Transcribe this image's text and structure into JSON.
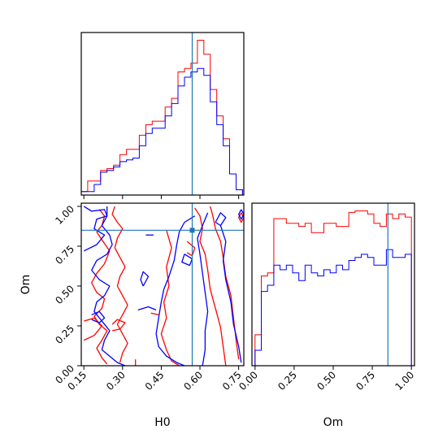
{
  "chart_data": {
    "type": "corner",
    "parameters": [
      "H0",
      "Om"
    ],
    "truths": {
      "H0": 0.57,
      "Om": 0.85
    },
    "colors": {
      "series_a": "#ff0000",
      "series_b": "#0000ff",
      "truth": "#1f77b4"
    },
    "series": [
      {
        "color": "#ff0000"
      },
      {
        "color": "#0000ff"
      }
    ],
    "h0_hist": {
      "range": [
        0.14,
        0.77
      ],
      "bin_edges": [
        0.14,
        0.165,
        0.19,
        0.215,
        0.24,
        0.265,
        0.29,
        0.315,
        0.34,
        0.365,
        0.39,
        0.415,
        0.44,
        0.465,
        0.49,
        0.515,
        0.54,
        0.565,
        0.59,
        0.615,
        0.64,
        0.665,
        0.69,
        0.715,
        0.74,
        0.765
      ],
      "series_a": [
        2,
        8,
        8,
        14,
        15,
        17,
        23,
        26,
        26,
        34,
        40,
        42,
        42,
        50,
        55,
        70,
        72,
        75,
        88,
        80,
        60,
        45,
        32,
        12,
        3
      ],
      "series_b": [
        2,
        2,
        6,
        13,
        14,
        16,
        19,
        20,
        21,
        28,
        35,
        38,
        38,
        45,
        52,
        62,
        67,
        70,
        72,
        68,
        53,
        40,
        28,
        12,
        3
      ]
    },
    "om_hist": {
      "range": [
        0.0,
        1.0
      ],
      "bin_edges": [
        0.0,
        0.04,
        0.08,
        0.12,
        0.16,
        0.2,
        0.24,
        0.28,
        0.32,
        0.36,
        0.4,
        0.44,
        0.48,
        0.52,
        0.56,
        0.6,
        0.64,
        0.68,
        0.72,
        0.76,
        0.8,
        0.84,
        0.88,
        0.92,
        0.96,
        1.0
      ],
      "series_a": [
        20,
        58,
        60,
        95,
        95,
        92,
        92,
        90,
        92,
        86,
        86,
        92,
        92,
        90,
        90,
        99,
        100,
        100,
        98,
        92,
        90,
        98,
        95,
        98,
        96
      ],
      "series_b": [
        10,
        48,
        52,
        65,
        62,
        65,
        60,
        55,
        65,
        60,
        58,
        62,
        60,
        65,
        62,
        68,
        70,
        72,
        70,
        65,
        65,
        75,
        70,
        70,
        72
      ]
    },
    "contours": {
      "x_param": "H0",
      "y_param": "Om",
      "series_a": [
        [
          [
            0.21,
            0.98
          ],
          [
            0.23,
            0.94
          ],
          [
            0.22,
            0.88
          ],
          [
            0.2,
            0.84
          ],
          [
            0.22,
            0.79
          ],
          [
            0.25,
            0.72
          ],
          [
            0.23,
            0.64
          ],
          [
            0.2,
            0.58
          ],
          [
            0.18,
            0.52
          ],
          [
            0.2,
            0.46
          ],
          [
            0.23,
            0.42
          ],
          [
            0.22,
            0.36
          ],
          [
            0.19,
            0.31
          ],
          [
            0.21,
            0.26
          ],
          [
            0.24,
            0.22
          ],
          [
            0.22,
            0.16
          ],
          [
            0.2,
            0.11
          ],
          [
            0.22,
            0.05
          ],
          [
            0.24,
            0.01
          ]
        ],
        [
          [
            0.27,
            1.0
          ],
          [
            0.26,
            0.95
          ],
          [
            0.28,
            0.9
          ],
          [
            0.3,
            0.86
          ],
          [
            0.28,
            0.8
          ],
          [
            0.27,
            0.74
          ],
          [
            0.29,
            0.68
          ],
          [
            0.31,
            0.62
          ],
          [
            0.29,
            0.56
          ],
          [
            0.28,
            0.5
          ],
          [
            0.3,
            0.44
          ],
          [
            0.32,
            0.38
          ],
          [
            0.3,
            0.32
          ],
          [
            0.28,
            0.26
          ],
          [
            0.3,
            0.2
          ],
          [
            0.32,
            0.14
          ],
          [
            0.3,
            0.08
          ],
          [
            0.29,
            0.02
          ]
        ],
        [
          [
            0.15,
            0.28
          ],
          [
            0.19,
            0.3
          ],
          [
            0.22,
            0.25
          ],
          [
            0.19,
            0.19
          ],
          [
            0.15,
            0.16
          ]
        ],
        [
          [
            0.26,
            0.26
          ],
          [
            0.28,
            0.29
          ],
          [
            0.31,
            0.27
          ],
          [
            0.29,
            0.23
          ],
          [
            0.26,
            0.22
          ]
        ],
        [
          [
            0.35,
            0.04
          ],
          [
            0.35,
            0.0
          ]
        ],
        [
          [
            0.41,
            0.33
          ],
          [
            0.44,
            0.32
          ]
        ],
        [
          [
            0.47,
            0.85
          ],
          [
            0.49,
            0.74
          ],
          [
            0.47,
            0.62
          ],
          [
            0.48,
            0.5
          ],
          [
            0.46,
            0.4
          ],
          [
            0.47,
            0.3
          ],
          [
            0.45,
            0.2
          ],
          [
            0.47,
            0.1
          ],
          [
            0.49,
            0.03
          ],
          [
            0.52,
            0.0
          ]
        ],
        [
          [
            0.58,
            0.99
          ],
          [
            0.6,
            0.94
          ],
          [
            0.61,
            0.86
          ],
          [
            0.6,
            0.78
          ],
          [
            0.62,
            0.7
          ],
          [
            0.63,
            0.6
          ],
          [
            0.64,
            0.48
          ],
          [
            0.66,
            0.36
          ],
          [
            0.68,
            0.24
          ],
          [
            0.69,
            0.12
          ],
          [
            0.7,
            0.0
          ]
        ],
        [
          [
            0.64,
            1.0
          ],
          [
            0.65,
            0.94
          ],
          [
            0.66,
            0.86
          ],
          [
            0.68,
            0.78
          ],
          [
            0.69,
            0.68
          ],
          [
            0.7,
            0.56
          ],
          [
            0.72,
            0.44
          ],
          [
            0.73,
            0.3
          ],
          [
            0.74,
            0.16
          ],
          [
            0.75,
            0.04
          ]
        ],
        [
          [
            0.55,
            0.78
          ],
          [
            0.58,
            0.74
          ],
          [
            0.57,
            0.69
          ],
          [
            0.55,
            0.71
          ]
        ],
        [
          [
            0.76,
            0.96
          ],
          [
            0.77,
            0.93
          ],
          [
            0.76,
            0.9
          ],
          [
            0.75,
            0.93
          ],
          [
            0.76,
            0.96
          ]
        ]
      ],
      "series_b": [
        [
          [
            0.15,
            1.0
          ],
          [
            0.18,
            0.97
          ],
          [
            0.23,
            0.98
          ],
          [
            0.24,
            0.94
          ],
          [
            0.2,
            0.92
          ],
          [
            0.19,
            0.86
          ],
          [
            0.23,
            0.82
          ],
          [
            0.2,
            0.76
          ],
          [
            0.15,
            0.72
          ]
        ],
        [
          [
            0.24,
            1.0
          ],
          [
            0.24,
            0.94
          ],
          [
            0.22,
            0.88
          ],
          [
            0.25,
            0.82
          ],
          [
            0.26,
            0.76
          ],
          [
            0.24,
            0.7
          ],
          [
            0.2,
            0.66
          ],
          [
            0.18,
            0.6
          ],
          [
            0.21,
            0.54
          ],
          [
            0.25,
            0.5
          ],
          [
            0.23,
            0.44
          ],
          [
            0.2,
            0.4
          ],
          [
            0.19,
            0.34
          ],
          [
            0.22,
            0.28
          ],
          [
            0.25,
            0.22
          ],
          [
            0.23,
            0.16
          ],
          [
            0.22,
            0.1
          ],
          [
            0.25,
            0.06
          ],
          [
            0.28,
            0.02
          ],
          [
            0.31,
            0.0
          ]
        ],
        [
          [
            0.18,
            0.32
          ],
          [
            0.21,
            0.34
          ],
          [
            0.23,
            0.3
          ],
          [
            0.21,
            0.27
          ],
          [
            0.18,
            0.29
          ]
        ],
        [
          [
            0.39,
            0.82
          ],
          [
            0.42,
            0.82
          ]
        ],
        [
          [
            0.36,
            0.35
          ],
          [
            0.4,
            0.37
          ],
          [
            0.43,
            0.35
          ]
        ],
        [
          [
            0.38,
            0.5
          ],
          [
            0.4,
            0.56
          ],
          [
            0.38,
            0.59
          ],
          [
            0.37,
            0.54
          ],
          [
            0.38,
            0.5
          ]
        ],
        [
          [
            0.58,
            0.94
          ],
          [
            0.54,
            0.9
          ],
          [
            0.52,
            0.84
          ],
          [
            0.51,
            0.76
          ],
          [
            0.5,
            0.66
          ],
          [
            0.48,
            0.56
          ],
          [
            0.46,
            0.48
          ],
          [
            0.45,
            0.4
          ],
          [
            0.44,
            0.3
          ],
          [
            0.43,
            0.2
          ],
          [
            0.44,
            0.12
          ],
          [
            0.47,
            0.06
          ],
          [
            0.51,
            0.02
          ],
          [
            0.54,
            0.0
          ]
        ],
        [
          [
            0.63,
            0.96
          ],
          [
            0.61,
            0.88
          ],
          [
            0.59,
            0.8
          ],
          [
            0.6,
            0.7
          ],
          [
            0.61,
            0.58
          ],
          [
            0.62,
            0.46
          ],
          [
            0.63,
            0.34
          ],
          [
            0.62,
            0.22
          ],
          [
            0.62,
            0.1
          ],
          [
            0.61,
            0.0
          ]
        ],
        [
          [
            0.68,
            0.88
          ],
          [
            0.7,
            0.78
          ],
          [
            0.69,
            0.66
          ],
          [
            0.7,
            0.54
          ],
          [
            0.72,
            0.4
          ],
          [
            0.73,
            0.26
          ],
          [
            0.75,
            0.12
          ],
          [
            0.76,
            0.02
          ]
        ],
        [
          [
            0.54,
            0.7
          ],
          [
            0.57,
            0.67
          ],
          [
            0.56,
            0.63
          ],
          [
            0.53,
            0.65
          ],
          [
            0.54,
            0.7
          ]
        ],
        [
          [
            0.66,
            0.9
          ],
          [
            0.68,
            0.96
          ],
          [
            0.7,
            0.93
          ],
          [
            0.68,
            0.88
          ],
          [
            0.66,
            0.9
          ]
        ],
        [
          [
            0.76,
            0.98
          ],
          [
            0.77,
            0.95
          ],
          [
            0.76,
            0.92
          ],
          [
            0.75,
            0.95
          ],
          [
            0.76,
            0.98
          ]
        ]
      ]
    },
    "axes": {
      "x_h0": {
        "label": "H0",
        "ticks": [
          "0.15",
          "0.30",
          "0.45",
          "0.60",
          "0.75"
        ],
        "tick_values": [
          0.15,
          0.3,
          0.45,
          0.6,
          0.75
        ],
        "range": [
          0.14,
          0.77
        ]
      },
      "y_om": {
        "label": "Om",
        "ticks": [
          "0.00",
          "0.25",
          "0.50",
          "0.75",
          "1.00"
        ],
        "tick_values": [
          0.0,
          0.25,
          0.5,
          0.75,
          1.0
        ],
        "range": [
          0.0,
          1.02
        ]
      },
      "x_om": {
        "label": "Om",
        "ticks": [
          "0.00",
          "0.25",
          "0.50",
          "0.75",
          "1.00"
        ],
        "tick_values": [
          0.0,
          0.25,
          0.5,
          0.75,
          1.0
        ],
        "range": [
          -0.02,
          1.02
        ]
      }
    }
  }
}
